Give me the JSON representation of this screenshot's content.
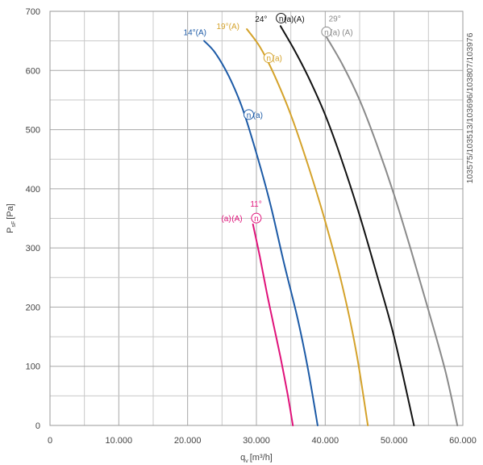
{
  "chart_data": {
    "type": "line",
    "xlabel": "q",
    "xlabel_sub": "v",
    "xlabel_unit": "[m³/h]",
    "ylabel": "P",
    "ylabel_sub": "sF",
    "ylabel_unit": "[Pa]",
    "xlim": [
      0,
      60000
    ],
    "ylim": [
      0,
      700
    ],
    "x_ticks": [
      0,
      10000,
      20000,
      30000,
      40000,
      50000,
      60000
    ],
    "x_tick_labels": [
      "0",
      "10.000",
      "20.000",
      "30.000",
      "40.000",
      "50.000",
      "60.000"
    ],
    "y_ticks": [
      0,
      100,
      200,
      300,
      400,
      500,
      600,
      700
    ],
    "y_tick_labels": [
      "0",
      "100",
      "200",
      "300",
      "400",
      "500",
      "600",
      "700"
    ],
    "grid": true,
    "side_code": "103575/103513/103696/103807/103976",
    "series": [
      {
        "key": "11",
        "color": "#e0127a",
        "points": [
          [
            29500,
            340
          ],
          [
            30500,
            285
          ],
          [
            31500,
            225
          ],
          [
            32500,
            170
          ],
          [
            33500,
            115
          ],
          [
            34500,
            55
          ],
          [
            35300,
            0
          ]
        ]
      },
      {
        "key": "14",
        "color": "#1c5aa6",
        "points": [
          [
            22400,
            650
          ],
          [
            24000,
            630
          ],
          [
            26000,
            590
          ],
          [
            28000,
            535
          ],
          [
            30000,
            460
          ],
          [
            32000,
            375
          ],
          [
            34000,
            275
          ],
          [
            36000,
            180
          ],
          [
            37500,
            95
          ],
          [
            38900,
            0
          ]
        ]
      },
      {
        "key": "19",
        "color": "#d4a22a",
        "points": [
          [
            28600,
            670
          ],
          [
            30500,
            640
          ],
          [
            32500,
            595
          ],
          [
            35000,
            525
          ],
          [
            37500,
            440
          ],
          [
            40000,
            345
          ],
          [
            42500,
            235
          ],
          [
            44500,
            125
          ],
          [
            46200,
            0
          ]
        ]
      },
      {
        "key": "24",
        "color": "#111111",
        "points": [
          [
            33500,
            675
          ],
          [
            35500,
            635
          ],
          [
            37500,
            590
          ],
          [
            40000,
            525
          ],
          [
            42500,
            445
          ],
          [
            45000,
            355
          ],
          [
            47500,
            255
          ],
          [
            50000,
            150
          ],
          [
            52900,
            0
          ]
        ]
      },
      {
        "key": "29",
        "color": "#8a8a8a",
        "points": [
          [
            40000,
            660
          ],
          [
            42500,
            610
          ],
          [
            45000,
            550
          ],
          [
            47500,
            475
          ],
          [
            50000,
            390
          ],
          [
            52500,
            295
          ],
          [
            55000,
            195
          ],
          [
            57500,
            90
          ],
          [
            59200,
            0
          ]
        ]
      }
    ],
    "annotations": [
      {
        "key": "a11-angle",
        "text": "11°",
        "color": "#e0127a",
        "x": 29100,
        "y": 370
      },
      {
        "key": "a11-a",
        "text": "(a)",
        "color": "#e0127a",
        "x": 24900,
        "y": 345
      },
      {
        "key": "a11-A",
        "text": "(A)",
        "color": "#e0127a",
        "x": 26400,
        "y": 345
      },
      {
        "key": "a11-n",
        "text": "n",
        "color": "#e0127a",
        "x": 29400,
        "y": 345,
        "circle": true
      },
      {
        "key": "a14-label",
        "text": "14°(A)",
        "color": "#1c5aa6",
        "x": 19400,
        "y": 660
      },
      {
        "key": "a14-n",
        "text": "n",
        "color": "#1c5aa6",
        "x": 28300,
        "y": 520,
        "circle": true
      },
      {
        "key": "a14-a",
        "text": "(a)",
        "color": "#1c5aa6",
        "x": 29500,
        "y": 520
      },
      {
        "key": "a19-label",
        "text": "19°(A)",
        "color": "#d4a22a",
        "x": 24200,
        "y": 670
      },
      {
        "key": "a19-n",
        "text": "n",
        "color": "#d4a22a",
        "x": 31200,
        "y": 616,
        "circle": true
      },
      {
        "key": "a19-a",
        "text": "(a)",
        "color": "#d4a22a",
        "x": 32300,
        "y": 616
      },
      {
        "key": "a24-angle",
        "text": "24°",
        "color": "#111111",
        "x": 29800,
        "y": 682
      },
      {
        "key": "a24-n",
        "text": "n",
        "color": "#111111",
        "x": 33000,
        "y": 683,
        "circle": true
      },
      {
        "key": "a24-aA",
        "text": "(a)(A)",
        "color": "#111111",
        "x": 34000,
        "y": 682
      },
      {
        "key": "a29-angle",
        "text": "29°",
        "color": "#8a8a8a",
        "x": 40500,
        "y": 683
      },
      {
        "key": "a29-n",
        "text": "n",
        "color": "#8a8a8a",
        "x": 39600,
        "y": 660,
        "circle": true
      },
      {
        "key": "a29-aA",
        "text": "(a) (A)",
        "color": "#8a8a8a",
        "x": 40700,
        "y": 660
      }
    ]
  }
}
